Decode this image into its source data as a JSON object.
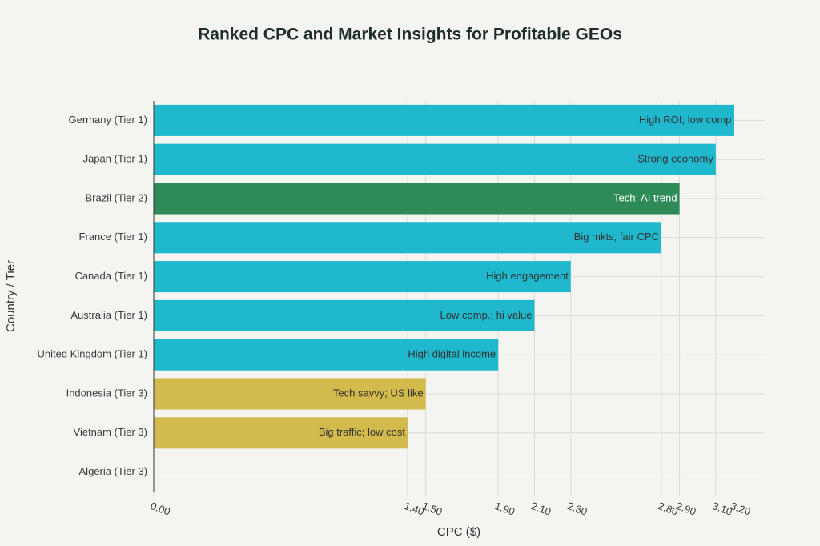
{
  "chart_data": {
    "type": "hbar",
    "title": "Ranked CPC and Market Insights for Profitable GEOs",
    "x_label": "CPC ($)",
    "y_label": "Country / Tier",
    "categories": [
      "Germany (Tier 1)",
      "Japan (Tier 1)",
      "Brazil (Tier 2)",
      "France (Tier 1)",
      "Canada (Tier 1)",
      "Australia (Tier 1)",
      "United Kingdom (Tier 1)",
      "Indonesia (Tier 3)",
      "Vietnam (Tier 3)",
      "Algeria (Tier 3)"
    ],
    "values": [
      3.2,
      3.1,
      2.9,
      2.8,
      2.3,
      2.1,
      1.9,
      1.5,
      1.4,
      0
    ],
    "colors": [
      "#1fb8cd",
      "#1fb8cd",
      "#2e8b57",
      "#1fb8cd",
      "#1fb8cd",
      "#1fb8cd",
      "#1fb8cd",
      "#d2ba4c",
      "#d2ba4c",
      "#d2ba4c"
    ],
    "annotations": [
      "High ROI; low comp",
      "Strong economy",
      "Tech; AI trend",
      "Big mkts; fair CPC",
      "High engagement",
      "Low comp.; hi value",
      "High digital income",
      "Tech savvy; US like",
      "Big traffic; low cost",
      null
    ],
    "xlim": [
      0,
      3.37
    ],
    "xticks": [
      {
        "value": 0,
        "label": "0.00"
      },
      {
        "value": 1.4,
        "label": "1.40"
      },
      {
        "value": 1.5,
        "label": "1.50"
      },
      {
        "value": 1.9,
        "label": "1.90"
      },
      {
        "value": 2.1,
        "label": "2.10"
      },
      {
        "value": 2.3,
        "label": "2.30"
      },
      {
        "value": 2.8,
        "label": "2.80"
      },
      {
        "value": 2.9,
        "label": "2.90"
      },
      {
        "value": 3.1,
        "label": "3.10"
      },
      {
        "value": 3.2,
        "label": "3.20"
      }
    ],
    "grid": true
  }
}
